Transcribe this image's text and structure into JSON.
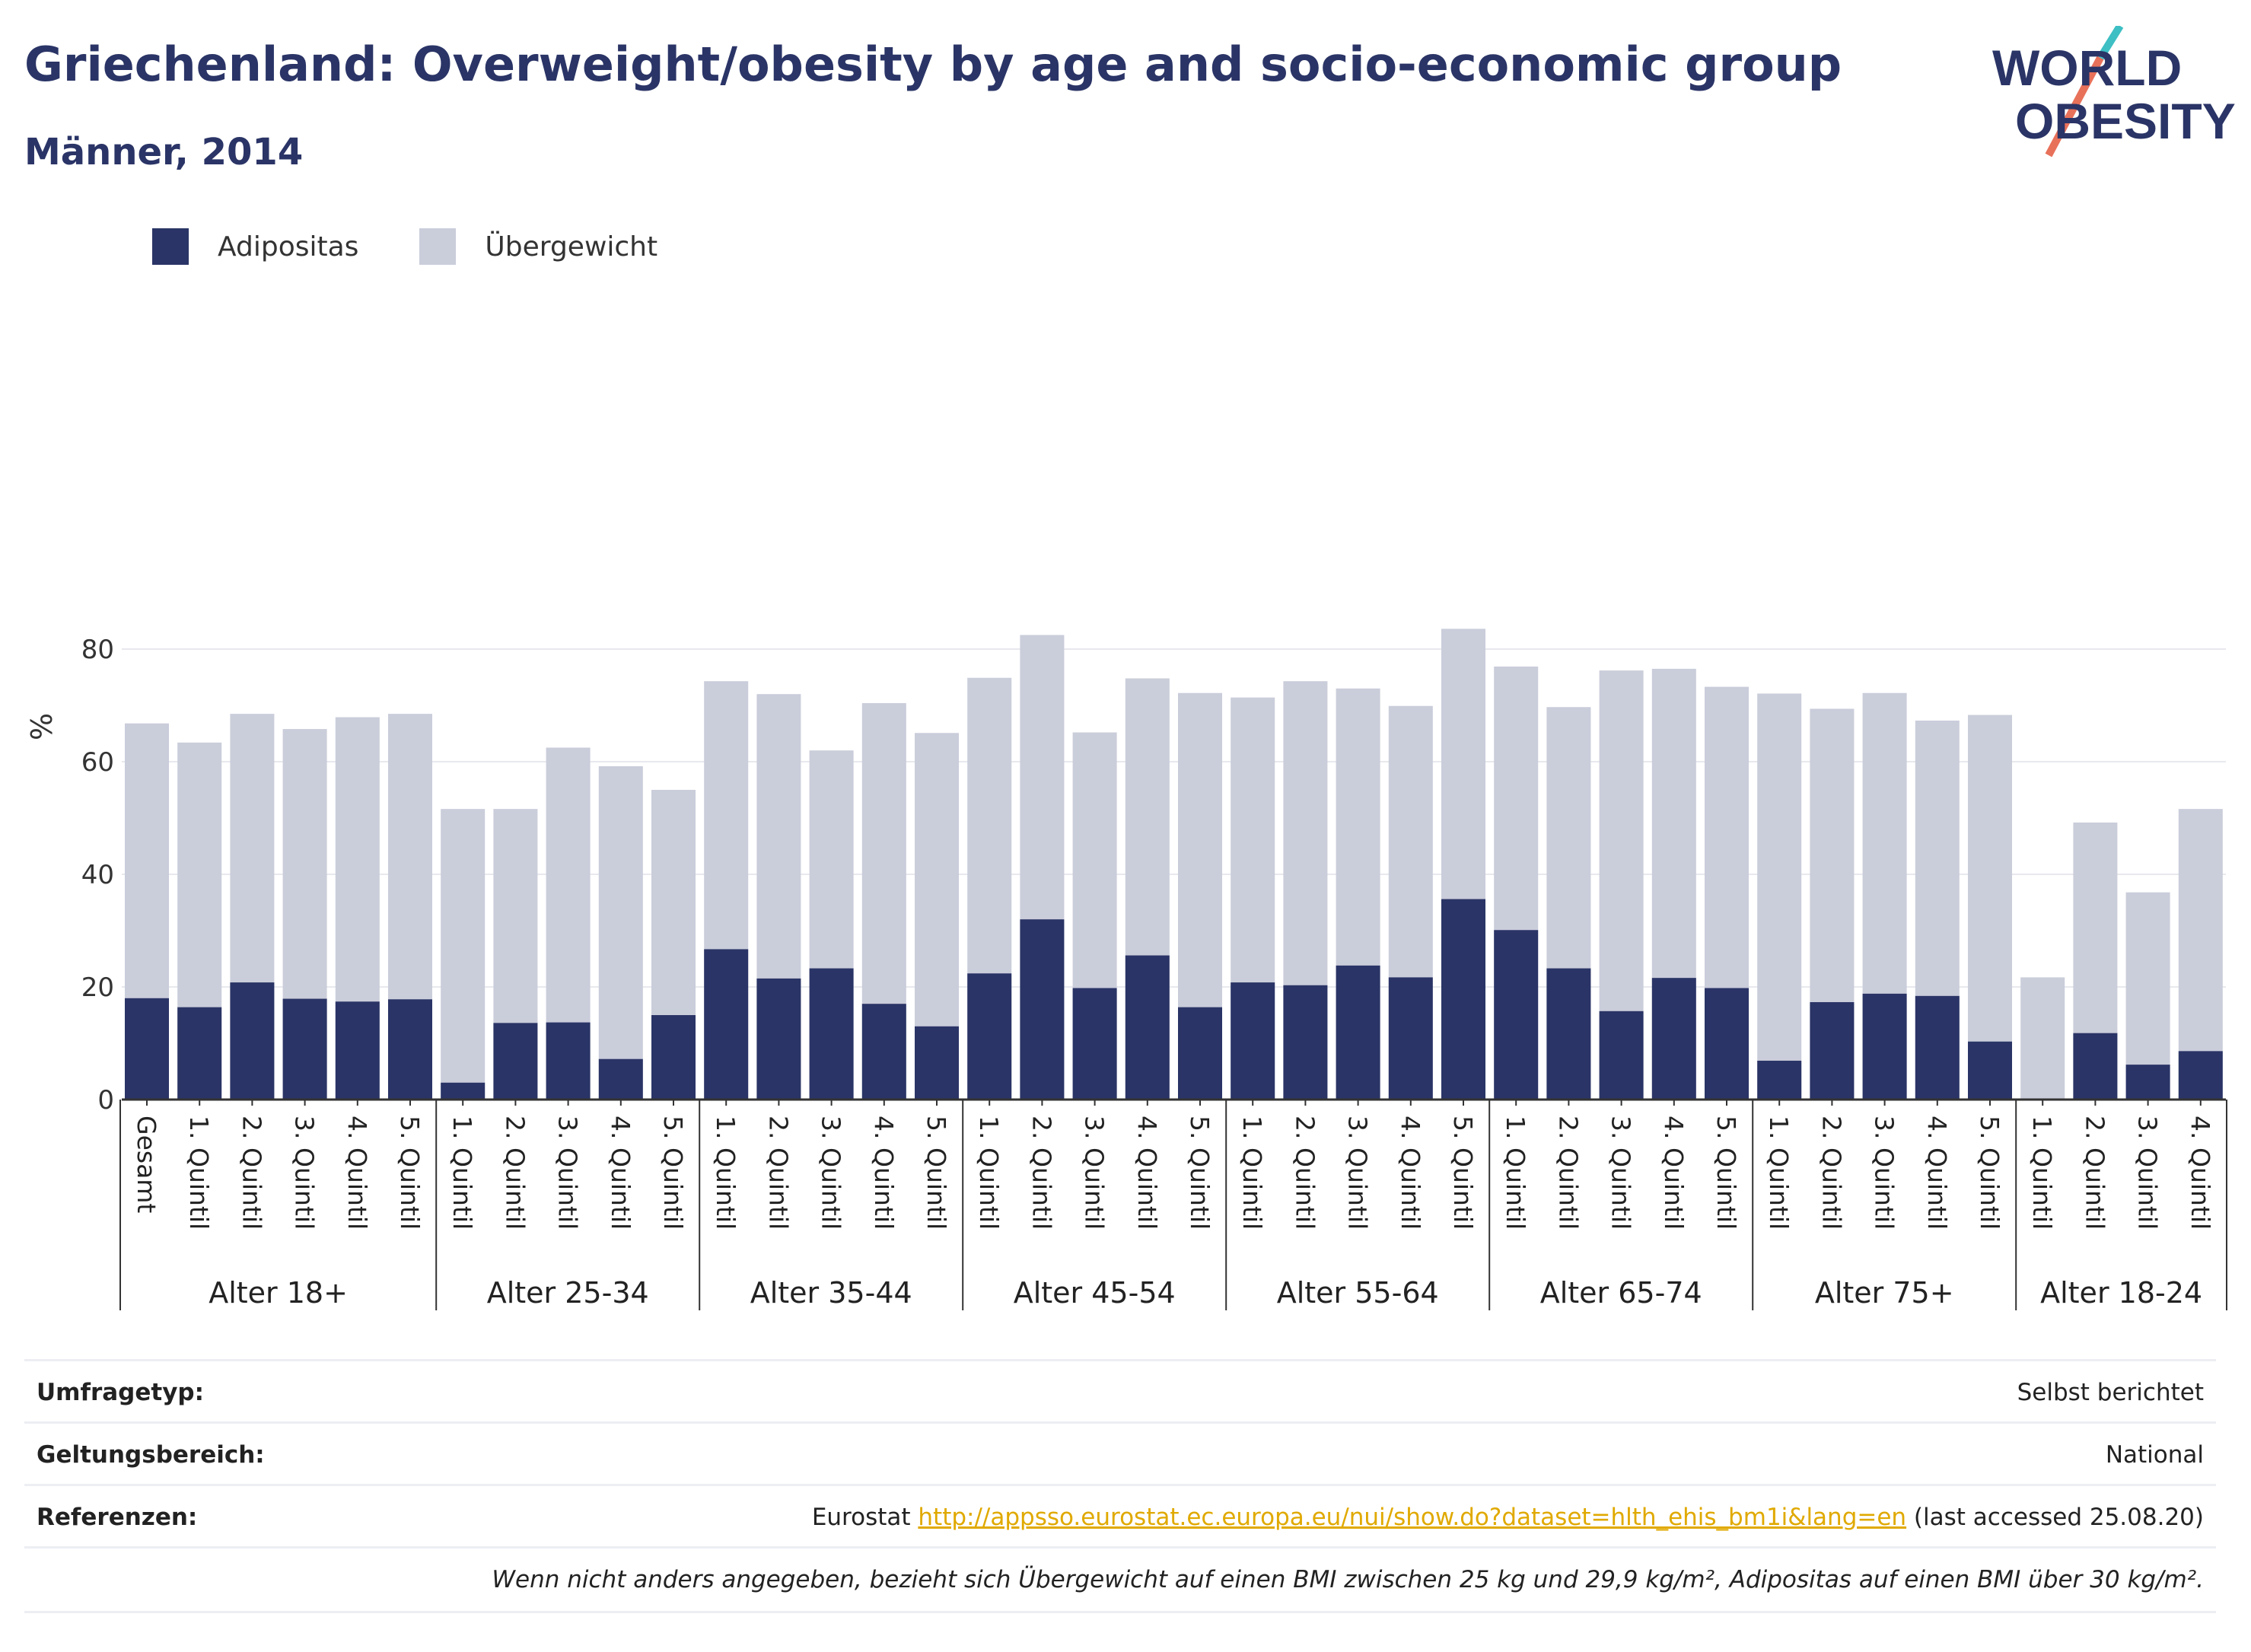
{
  "header": {
    "title": "Griechenland: Overweight/obesity by age and socio-economic group",
    "subtitle": "Männer, 2014"
  },
  "logo": {
    "line1": "WORLD",
    "line2": "OBESITY",
    "accent_colors": [
      "#3dbfc4",
      "#e8715a"
    ]
  },
  "legend": [
    {
      "label": "Adipositas",
      "color": "#2a3466"
    },
    {
      "label": "Übergewicht",
      "color": "#cacdda"
    }
  ],
  "chart_data": {
    "type": "bar",
    "stacked": false,
    "overlay": true,
    "ylabel": "%",
    "ylim": [
      0,
      90
    ],
    "yticks": [
      0,
      20,
      40,
      60,
      80
    ],
    "grid": true,
    "legend_position": "top-left",
    "groups": [
      {
        "label": "Alter 18+",
        "categories": [
          "Gesamt",
          "1. Quintil",
          "2. Quintil",
          "3. Quintil",
          "4. Quintil",
          "5. Quintil"
        ],
        "overweight": [
          66.8,
          63.4,
          68.5,
          65.8,
          67.9,
          68.5
        ],
        "obesity": [
          18.0,
          16.4,
          20.8,
          17.9,
          17.4,
          17.8
        ]
      },
      {
        "label": "Alter 25-34",
        "categories": [
          "1. Quintil",
          "2. Quintil",
          "3. Quintil",
          "4. Quintil",
          "5. Quintil"
        ],
        "overweight": [
          51.6,
          51.6,
          62.5,
          59.2,
          55.0
        ],
        "obesity": [
          3.0,
          13.6,
          13.7,
          7.2,
          15.0
        ]
      },
      {
        "label": "Alter 35-44",
        "categories": [
          "1. Quintil",
          "2. Quintil",
          "3. Quintil",
          "4. Quintil",
          "5. Quintil"
        ],
        "overweight": [
          74.3,
          72.0,
          62.0,
          70.4,
          65.1
        ],
        "obesity": [
          26.7,
          21.5,
          23.3,
          17.0,
          13.0
        ]
      },
      {
        "label": "Alter 45-54",
        "categories": [
          "1. Quintil",
          "2. Quintil",
          "3. Quintil",
          "4. Quintil",
          "5. Quintil"
        ],
        "overweight": [
          74.9,
          82.5,
          65.2,
          74.8,
          72.2
        ],
        "obesity": [
          22.4,
          32.0,
          19.8,
          25.6,
          16.4
        ]
      },
      {
        "label": "Alter 55-64",
        "categories": [
          "1. Quintil",
          "2. Quintil",
          "3. Quintil",
          "4. Quintil",
          "5. Quintil"
        ],
        "overweight": [
          71.4,
          74.3,
          73.0,
          69.9,
          83.6
        ],
        "obesity": [
          20.8,
          20.3,
          23.8,
          21.7,
          35.6
        ]
      },
      {
        "label": "Alter 65-74",
        "categories": [
          "1. Quintil",
          "2. Quintil",
          "3. Quintil",
          "4. Quintil",
          "5. Quintil"
        ],
        "overweight": [
          76.9,
          69.7,
          76.2,
          76.5,
          73.3
        ],
        "obesity": [
          30.1,
          23.3,
          15.7,
          21.6,
          19.8
        ]
      },
      {
        "label": "Alter 75+",
        "categories": [
          "1. Quintil",
          "2. Quintil",
          "3. Quintil",
          "4. Quintil",
          "5. Quintil"
        ],
        "overweight": [
          72.1,
          69.4,
          72.2,
          67.3,
          68.3
        ],
        "obesity": [
          6.9,
          17.3,
          18.8,
          18.4,
          10.3
        ]
      },
      {
        "label": "Alter 18-24",
        "categories": [
          "1. Quintil",
          "2. Quintil",
          "3. Quintil",
          "4. Quintil"
        ],
        "overweight": [
          21.7,
          49.2,
          36.8,
          51.6
        ],
        "obesity": [
          0.0,
          11.8,
          6.2,
          8.6
        ]
      }
    ]
  },
  "meta": [
    {
      "key": "Umfragetyp:",
      "value": "Selbst berichtet"
    },
    {
      "key": "Geltungsbereich:",
      "value": "National"
    },
    {
      "key": "Referenzen:",
      "value_prefix": "Eurostat ",
      "link": "http://appsso.eurostat.ec.europa.eu/nui/show.do?dataset=hlth_ehis_bm1i&lang=en",
      "value_suffix": " (last accessed 25.08.20)"
    }
  ],
  "note": "Wenn nicht anders angegeben, bezieht sich Übergewicht auf einen BMI zwischen 25 kg und 29,9 kg/m², Adipositas auf einen BMI über 30 kg/m²."
}
